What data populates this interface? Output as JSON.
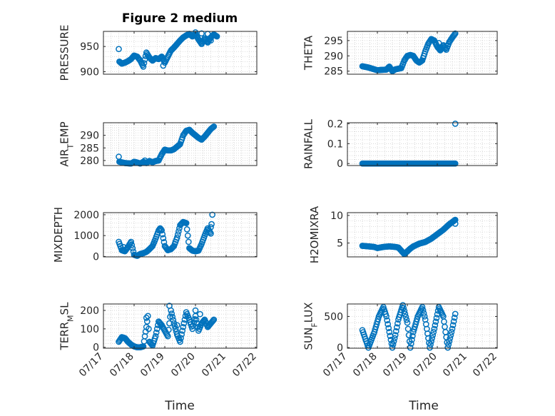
{
  "figure": {
    "title": "Figure 2 medium"
  },
  "colors": {
    "marker": "#0072BD",
    "grid": "#cfcfcf",
    "axis": "#262626"
  },
  "chart_data": [
    {
      "type": "scatter",
      "id": "pressure",
      "ylabel_parts": [
        [
          "PRESSURE",
          "n"
        ]
      ],
      "ylim": [
        895,
        980
      ],
      "yticks": [
        900,
        950
      ],
      "ytick_labels": [
        "900",
        "950"
      ],
      "xlim": [
        0,
        5
      ],
      "xticks": [
        0,
        1,
        2,
        3,
        4,
        5
      ],
      "xtick_labels": [],
      "grid": true,
      "anchors": [
        [
          0.5,
          945
        ],
        [
          0.52,
          920
        ],
        [
          0.6,
          916
        ],
        [
          0.7,
          918
        ],
        [
          0.8,
          921
        ],
        [
          0.9,
          925
        ],
        [
          1.0,
          932
        ],
        [
          1.1,
          930
        ],
        [
          1.2,
          922
        ],
        [
          1.3,
          910
        ],
        [
          1.4,
          938
        ],
        [
          1.5,
          928
        ],
        [
          1.6,
          922
        ],
        [
          1.7,
          927
        ],
        [
          1.8,
          925
        ],
        [
          1.9,
          930
        ],
        [
          2.0,
          918
        ],
        [
          2.1,
          930
        ],
        [
          2.2,
          942
        ],
        [
          2.3,
          948
        ],
        [
          2.4,
          955
        ],
        [
          2.5,
          962
        ],
        [
          2.6,
          968
        ],
        [
          2.7,
          972
        ],
        [
          2.8,
          975
        ],
        [
          2.9,
          970
        ],
        [
          3.0,
          974
        ],
        [
          3.1,
          964
        ],
        [
          3.2,
          955
        ],
        [
          3.3,
          966
        ],
        [
          3.4,
          958
        ],
        [
          3.5,
          968
        ],
        [
          3.6,
          974
        ],
        [
          3.7,
          970
        ]
      ],
      "extra": [
        [
          3.0,
          978
        ],
        [
          3.2,
          976
        ],
        [
          3.4,
          975
        ],
        [
          1.95,
          912
        ],
        [
          3.5,
          962
        ]
      ]
    },
    {
      "type": "scatter",
      "id": "theta",
      "ylabel_parts": [
        [
          "THETA",
          "n"
        ]
      ],
      "ylim": [
        284,
        298
      ],
      "yticks": [
        285,
        290,
        295
      ],
      "ytick_labels": [
        "285",
        "290",
        "295"
      ],
      "xlim": [
        0,
        5
      ],
      "xticks": [
        0,
        1,
        2,
        3,
        4,
        5
      ],
      "xtick_labels": [],
      "grid": true,
      "anchors": [
        [
          0.5,
          286.6
        ],
        [
          0.7,
          286.2
        ],
        [
          0.9,
          285.6
        ],
        [
          1.0,
          285.3
        ],
        [
          1.1,
          285.4
        ],
        [
          1.3,
          285.5
        ],
        [
          1.4,
          286.5
        ],
        [
          1.5,
          285.0
        ],
        [
          1.6,
          285.6
        ],
        [
          1.8,
          286.0
        ],
        [
          1.9,
          288.5
        ],
        [
          2.0,
          290.0
        ],
        [
          2.1,
          290.3
        ],
        [
          2.2,
          290.0
        ],
        [
          2.3,
          288.5
        ],
        [
          2.4,
          287.8
        ],
        [
          2.5,
          288.5
        ],
        [
          2.6,
          291.5
        ],
        [
          2.7,
          294.0
        ],
        [
          2.8,
          295.5
        ],
        [
          2.9,
          295.0
        ],
        [
          3.0,
          293.0
        ],
        [
          3.1,
          291.8
        ],
        [
          3.2,
          293.5
        ],
        [
          3.3,
          292.0
        ],
        [
          3.4,
          294.5
        ],
        [
          3.5,
          296.0
        ],
        [
          3.6,
          297.3
        ]
      ],
      "extra": [
        [
          3.05,
          294.2
        ],
        [
          3.1,
          292.8
        ]
      ]
    },
    {
      "type": "scatter",
      "id": "air-temp",
      "ylabel_parts": [
        [
          "AIR",
          "n"
        ],
        [
          "T",
          "sub"
        ],
        [
          "EMP",
          "n"
        ]
      ],
      "ylim": [
        278,
        295
      ],
      "yticks": [
        280,
        285,
        290
      ],
      "ytick_labels": [
        "280",
        "285",
        "290"
      ],
      "xlim": [
        0,
        5
      ],
      "xticks": [
        0,
        1,
        2,
        3,
        4,
        5
      ],
      "xtick_labels": [],
      "grid": true,
      "anchors": [
        [
          0.5,
          281.5
        ],
        [
          0.52,
          279.5
        ],
        [
          0.7,
          279.0
        ],
        [
          0.9,
          278.8
        ],
        [
          1.0,
          279.5
        ],
        [
          1.1,
          279.2
        ],
        [
          1.2,
          278.8
        ],
        [
          1.3,
          279.5
        ],
        [
          1.4,
          279.0
        ],
        [
          1.5,
          279.8
        ],
        [
          1.6,
          279.3
        ],
        [
          1.7,
          279.8
        ],
        [
          1.8,
          280.0
        ],
        [
          1.9,
          282.5
        ],
        [
          2.0,
          284.3
        ],
        [
          2.1,
          284.0
        ],
        [
          2.2,
          284.0
        ],
        [
          2.3,
          284.5
        ],
        [
          2.4,
          285.5
        ],
        [
          2.5,
          286.5
        ],
        [
          2.6,
          290.0
        ],
        [
          2.7,
          291.8
        ],
        [
          2.8,
          292.2
        ],
        [
          2.9,
          291.0
        ],
        [
          3.0,
          290.0
        ],
        [
          3.1,
          289.0
        ],
        [
          3.2,
          288.3
        ],
        [
          3.3,
          289.5
        ],
        [
          3.4,
          291.0
        ],
        [
          3.5,
          292.5
        ],
        [
          3.6,
          293.5
        ]
      ],
      "extra": [
        [
          1.35,
          280.0
        ]
      ]
    },
    {
      "type": "scatter",
      "id": "rainfall",
      "ylabel_parts": [
        [
          "RAINFALL",
          "n"
        ]
      ],
      "ylim": [
        -0.01,
        0.205
      ],
      "yticks": [
        0,
        0.1,
        0.2
      ],
      "ytick_labels": [
        "0",
        "0.1",
        "0.2"
      ],
      "xlim": [
        0,
        5
      ],
      "xticks": [
        0,
        1,
        2,
        3,
        4,
        5
      ],
      "xtick_labels": [],
      "grid": true,
      "anchors": [
        [
          0.5,
          0
        ],
        [
          3.6,
          0
        ]
      ],
      "extra": [
        [
          3.6,
          0.2
        ]
      ]
    },
    {
      "type": "scatter",
      "id": "mixdepth",
      "ylabel_parts": [
        [
          "MIXDEPTH",
          "n"
        ]
      ],
      "ylim": [
        -20,
        2100
      ],
      "yticks": [
        0,
        1000,
        2000
      ],
      "ytick_labels": [
        "0",
        "1000",
        "2000"
      ],
      "xlim": [
        0,
        5
      ],
      "xticks": [
        0,
        1,
        2,
        3,
        4,
        5
      ],
      "xtick_labels": [],
      "grid": true,
      "anchors": [
        [
          0.5,
          700
        ],
        [
          0.6,
          300
        ],
        [
          0.7,
          250
        ],
        [
          0.8,
          450
        ],
        [
          0.9,
          700
        ],
        [
          1.0,
          80
        ],
        [
          1.1,
          30
        ],
        [
          1.2,
          120
        ],
        [
          1.3,
          160
        ],
        [
          1.4,
          220
        ],
        [
          1.5,
          350
        ],
        [
          1.6,
          500
        ],
        [
          1.7,
          850
        ],
        [
          1.8,
          1250
        ],
        [
          1.85,
          1350
        ],
        [
          1.9,
          1250
        ],
        [
          2.0,
          500
        ],
        [
          2.1,
          300
        ],
        [
          2.2,
          350
        ],
        [
          2.3,
          500
        ],
        [
          2.4,
          900
        ],
        [
          2.5,
          1500
        ],
        [
          2.6,
          1650
        ],
        [
          2.7,
          1600
        ],
        [
          2.8,
          400
        ],
        [
          2.9,
          280
        ],
        [
          3.0,
          250
        ],
        [
          3.1,
          280
        ],
        [
          3.2,
          600
        ],
        [
          3.3,
          1000
        ],
        [
          3.4,
          1350
        ],
        [
          3.5,
          1100
        ],
        [
          3.55,
          2000
        ]
      ],
      "extra": [
        [
          0.65,
          450
        ],
        [
          3.5,
          1400
        ]
      ]
    },
    {
      "type": "scatter",
      "id": "h2omixra",
      "ylabel_parts": [
        [
          "H2OMIXRA",
          "n"
        ]
      ],
      "ylim": [
        2.5,
        10.5
      ],
      "yticks": [
        5,
        10
      ],
      "ytick_labels": [
        "5",
        "10"
      ],
      "xlim": [
        0,
        5
      ],
      "xticks": [
        0,
        1,
        2,
        3,
        4,
        5
      ],
      "xtick_labels": [],
      "grid": true,
      "anchors": [
        [
          0.5,
          4.5
        ],
        [
          0.7,
          4.4
        ],
        [
          0.9,
          4.3
        ],
        [
          1.0,
          4.1
        ],
        [
          1.2,
          4.3
        ],
        [
          1.4,
          4.4
        ],
        [
          1.6,
          4.3
        ],
        [
          1.7,
          4.2
        ],
        [
          1.8,
          3.6
        ],
        [
          1.9,
          3.0
        ],
        [
          2.0,
          3.5
        ],
        [
          2.1,
          4.0
        ],
        [
          2.2,
          4.4
        ],
        [
          2.4,
          4.9
        ],
        [
          2.6,
          5.2
        ],
        [
          2.8,
          5.8
        ],
        [
          3.0,
          6.6
        ],
        [
          3.2,
          7.4
        ],
        [
          3.4,
          8.4
        ],
        [
          3.6,
          9.2
        ]
      ],
      "extra": [
        [
          3.6,
          8.5
        ]
      ]
    },
    {
      "type": "scatter",
      "id": "terr-msl",
      "ylabel_parts": [
        [
          "TERR",
          "n"
        ],
        [
          "M",
          "sub"
        ],
        [
          "SL",
          "n"
        ]
      ],
      "ylim": [
        -5,
        235
      ],
      "yticks": [
        0,
        100,
        200
      ],
      "ytick_labels": [
        "0",
        "100",
        "200"
      ],
      "xlim": [
        0,
        5
      ],
      "xticks": [
        0,
        1,
        2,
        3,
        4,
        5
      ],
      "xtick_labels": [
        "07/17",
        "07/18",
        "07/19",
        "07/20",
        "07/21",
        "07/22"
      ],
      "grid": true,
      "anchors": [
        [
          0.5,
          30
        ],
        [
          0.6,
          55
        ],
        [
          0.7,
          50
        ],
        [
          0.8,
          30
        ],
        [
          0.9,
          15
        ],
        [
          1.0,
          5
        ],
        [
          1.1,
          0
        ],
        [
          1.2,
          0
        ],
        [
          1.3,
          5
        ],
        [
          1.35,
          60
        ],
        [
          1.4,
          110
        ],
        [
          1.45,
          170
        ],
        [
          1.5,
          30
        ],
        [
          1.6,
          10
        ],
        [
          1.7,
          60
        ],
        [
          1.8,
          140
        ],
        [
          1.9,
          120
        ],
        [
          2.0,
          90
        ],
        [
          2.1,
          60
        ],
        [
          2.2,
          200
        ],
        [
          2.3,
          130
        ],
        [
          2.4,
          70
        ],
        [
          2.5,
          30
        ],
        [
          2.6,
          110
        ],
        [
          2.7,
          190
        ],
        [
          2.8,
          150
        ],
        [
          2.9,
          100
        ],
        [
          3.0,
          170
        ],
        [
          3.1,
          90
        ],
        [
          3.2,
          130
        ],
        [
          3.3,
          150
        ],
        [
          3.4,
          110
        ],
        [
          3.5,
          130
        ],
        [
          3.6,
          150
        ]
      ],
      "extra": [
        [
          2.15,
          225
        ],
        [
          1.4,
          160
        ],
        [
          2.4,
          120
        ],
        [
          3.0,
          200
        ],
        [
          3.15,
          180
        ]
      ]
    },
    {
      "type": "scatter",
      "id": "sun-flux",
      "ylabel_parts": [
        [
          "SUN",
          "n"
        ],
        [
          "F",
          "sub"
        ],
        [
          "LUX",
          "n"
        ]
      ],
      "ylim": [
        -10,
        700
      ],
      "yticks": [
        0,
        500
      ],
      "ytick_labels": [
        "0",
        "500"
      ],
      "xlim": [
        0,
        5
      ],
      "xticks": [
        0,
        1,
        2,
        3,
        4,
        5
      ],
      "xtick_labels": [
        "07/17",
        "07/18",
        "07/19",
        "07/20",
        "07/21",
        "07/22"
      ],
      "grid": true,
      "anchors": [
        [
          0.5,
          280
        ],
        [
          0.7,
          0
        ],
        [
          0.9,
          250
        ],
        [
          1.05,
          500
        ],
        [
          1.2,
          650
        ],
        [
          1.3,
          500
        ],
        [
          1.5,
          0
        ],
        [
          1.6,
          200
        ],
        [
          1.7,
          450
        ],
        [
          1.85,
          680
        ],
        [
          2.0,
          400
        ],
        [
          2.1,
          0
        ],
        [
          2.2,
          250
        ],
        [
          2.35,
          500
        ],
        [
          2.5,
          650
        ],
        [
          2.6,
          450
        ],
        [
          2.75,
          0
        ],
        [
          2.9,
          300
        ],
        [
          3.05,
          650
        ],
        [
          3.2,
          500
        ],
        [
          3.35,
          0
        ],
        [
          3.5,
          300
        ],
        [
          3.6,
          540
        ]
      ],
      "extra": []
    }
  ],
  "xlabel_bottom": "Time"
}
